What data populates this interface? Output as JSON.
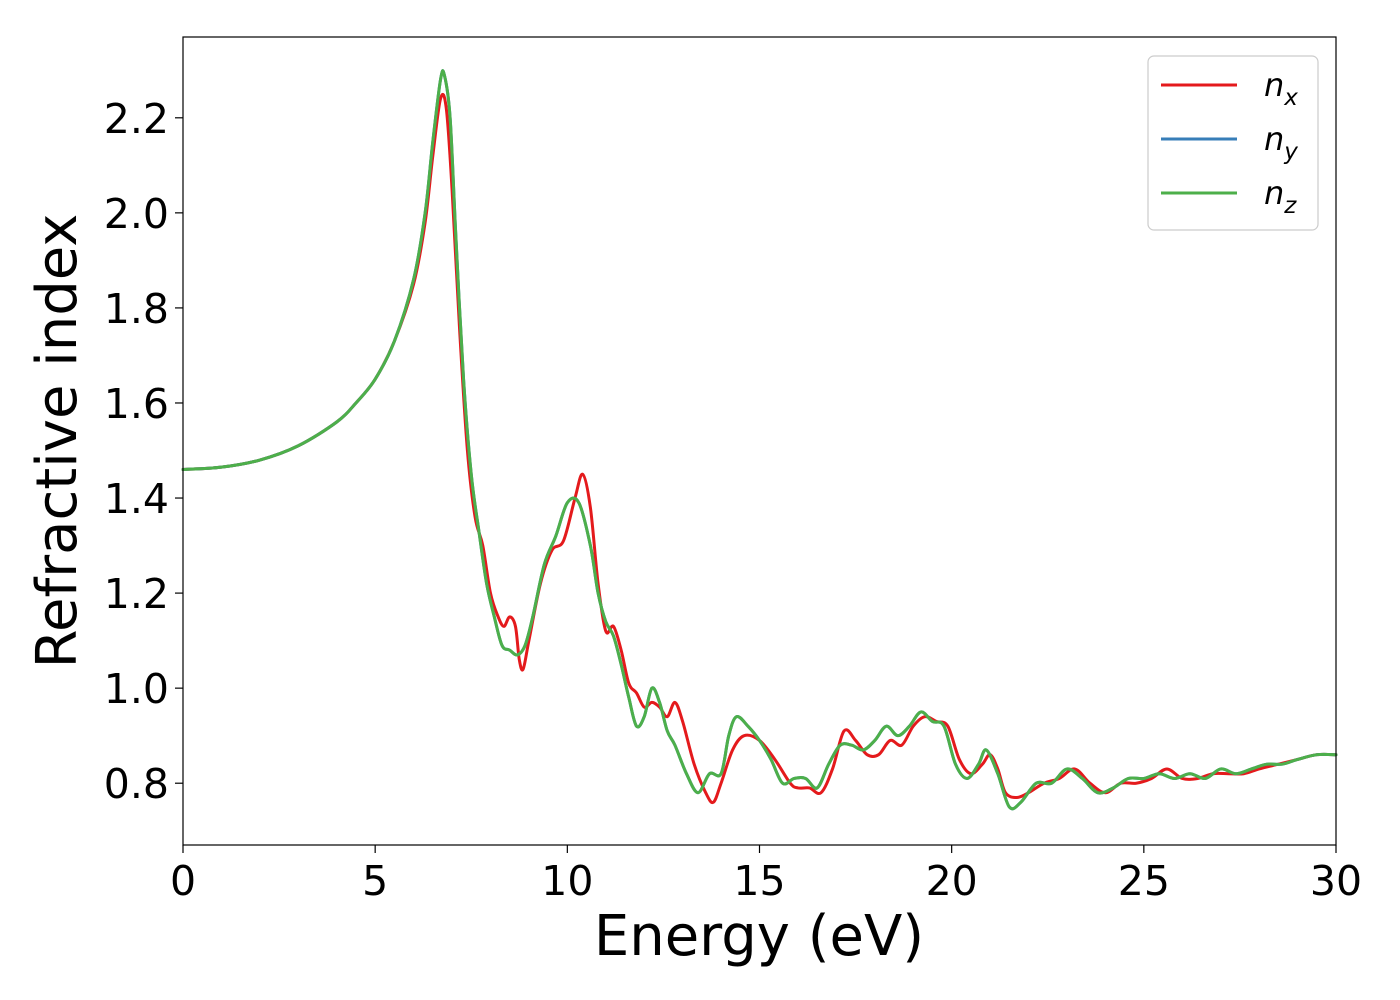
{
  "chart_data": {
    "type": "line",
    "title": "",
    "xlabel": "Energy (eV)",
    "ylabel": "Refractive index",
    "xlim": [
      0,
      30
    ],
    "ylim": [
      0.67,
      2.37
    ],
    "xticks": [
      "0",
      "5",
      "10",
      "15",
      "20",
      "25",
      "30"
    ],
    "yticks": [
      "0.8",
      "1.0",
      "1.2",
      "1.4",
      "1.6",
      "1.8",
      "2.0",
      "2.2"
    ],
    "grid": false,
    "legend_position": "top-right",
    "series": [
      {
        "name": "n",
        "subscript": "x",
        "color": "#e41a1c",
        "points": [
          [
            0,
            1.46
          ],
          [
            1,
            1.465
          ],
          [
            2,
            1.48
          ],
          [
            3,
            1.51
          ],
          [
            4,
            1.56
          ],
          [
            4.5,
            1.6
          ],
          [
            5,
            1.65
          ],
          [
            5.5,
            1.73
          ],
          [
            6,
            1.85
          ],
          [
            6.3,
            1.98
          ],
          [
            6.5,
            2.12
          ],
          [
            6.7,
            2.24
          ],
          [
            6.85,
            2.22
          ],
          [
            7.0,
            2.05
          ],
          [
            7.2,
            1.75
          ],
          [
            7.4,
            1.5
          ],
          [
            7.6,
            1.36
          ],
          [
            7.8,
            1.3
          ],
          [
            8.0,
            1.2
          ],
          [
            8.2,
            1.15
          ],
          [
            8.35,
            1.13
          ],
          [
            8.5,
            1.15
          ],
          [
            8.65,
            1.13
          ],
          [
            8.75,
            1.06
          ],
          [
            8.85,
            1.04
          ],
          [
            9.0,
            1.1
          ],
          [
            9.3,
            1.22
          ],
          [
            9.6,
            1.29
          ],
          [
            9.9,
            1.31
          ],
          [
            10.2,
            1.4
          ],
          [
            10.4,
            1.45
          ],
          [
            10.6,
            1.38
          ],
          [
            10.8,
            1.22
          ],
          [
            11.0,
            1.12
          ],
          [
            11.2,
            1.13
          ],
          [
            11.4,
            1.08
          ],
          [
            11.6,
            1.01
          ],
          [
            11.8,
            0.99
          ],
          [
            12.0,
            0.96
          ],
          [
            12.2,
            0.97
          ],
          [
            12.4,
            0.96
          ],
          [
            12.6,
            0.94
          ],
          [
            12.8,
            0.97
          ],
          [
            13.0,
            0.93
          ],
          [
            13.3,
            0.84
          ],
          [
            13.6,
            0.78
          ],
          [
            13.8,
            0.76
          ],
          [
            14.0,
            0.8
          ],
          [
            14.3,
            0.87
          ],
          [
            14.6,
            0.9
          ],
          [
            15.0,
            0.89
          ],
          [
            15.4,
            0.85
          ],
          [
            15.8,
            0.8
          ],
          [
            16.0,
            0.79
          ],
          [
            16.3,
            0.79
          ],
          [
            16.6,
            0.78
          ],
          [
            16.9,
            0.83
          ],
          [
            17.2,
            0.91
          ],
          [
            17.5,
            0.89
          ],
          [
            17.8,
            0.86
          ],
          [
            18.1,
            0.86
          ],
          [
            18.4,
            0.89
          ],
          [
            18.7,
            0.88
          ],
          [
            19.0,
            0.92
          ],
          [
            19.3,
            0.94
          ],
          [
            19.6,
            0.93
          ],
          [
            19.9,
            0.92
          ],
          [
            20.2,
            0.85
          ],
          [
            20.5,
            0.82
          ],
          [
            20.8,
            0.84
          ],
          [
            21.0,
            0.86
          ],
          [
            21.2,
            0.83
          ],
          [
            21.4,
            0.78
          ],
          [
            21.7,
            0.77
          ],
          [
            22.0,
            0.78
          ],
          [
            22.4,
            0.8
          ],
          [
            22.8,
            0.81
          ],
          [
            23.2,
            0.83
          ],
          [
            23.6,
            0.8
          ],
          [
            24.0,
            0.78
          ],
          [
            24.4,
            0.8
          ],
          [
            24.8,
            0.8
          ],
          [
            25.2,
            0.81
          ],
          [
            25.6,
            0.83
          ],
          [
            26.0,
            0.81
          ],
          [
            26.4,
            0.81
          ],
          [
            26.8,
            0.82
          ],
          [
            27.2,
            0.82
          ],
          [
            27.6,
            0.82
          ],
          [
            28.0,
            0.83
          ],
          [
            28.5,
            0.84
          ],
          [
            29.0,
            0.85
          ],
          [
            29.5,
            0.86
          ],
          [
            30,
            0.86
          ]
        ]
      },
      {
        "name": "n",
        "subscript": "y",
        "color": "#377eb8",
        "points": [
          [
            0,
            1.46
          ],
          [
            1,
            1.465
          ],
          [
            2,
            1.48
          ],
          [
            3,
            1.51
          ],
          [
            4,
            1.56
          ],
          [
            4.5,
            1.6
          ],
          [
            5,
            1.65
          ],
          [
            5.5,
            1.73
          ],
          [
            6,
            1.86
          ],
          [
            6.3,
            2.0
          ],
          [
            6.5,
            2.15
          ],
          [
            6.7,
            2.28
          ],
          [
            6.8,
            2.29
          ],
          [
            6.95,
            2.2
          ],
          [
            7.1,
            1.95
          ],
          [
            7.3,
            1.65
          ],
          [
            7.5,
            1.45
          ],
          [
            7.7,
            1.33
          ],
          [
            7.9,
            1.22
          ],
          [
            8.1,
            1.15
          ],
          [
            8.3,
            1.09
          ],
          [
            8.5,
            1.08
          ],
          [
            8.7,
            1.07
          ],
          [
            8.9,
            1.09
          ],
          [
            9.1,
            1.15
          ],
          [
            9.4,
            1.26
          ],
          [
            9.7,
            1.32
          ],
          [
            10.0,
            1.39
          ],
          [
            10.3,
            1.39
          ],
          [
            10.6,
            1.3
          ],
          [
            10.8,
            1.2
          ],
          [
            11.0,
            1.14
          ],
          [
            11.2,
            1.11
          ],
          [
            11.4,
            1.05
          ],
          [
            11.6,
            0.98
          ],
          [
            11.8,
            0.92
          ],
          [
            12.0,
            0.94
          ],
          [
            12.2,
            1.0
          ],
          [
            12.4,
            0.97
          ],
          [
            12.6,
            0.91
          ],
          [
            12.8,
            0.88
          ],
          [
            13.1,
            0.82
          ],
          [
            13.4,
            0.78
          ],
          [
            13.7,
            0.82
          ],
          [
            14.0,
            0.82
          ],
          [
            14.2,
            0.9
          ],
          [
            14.4,
            0.94
          ],
          [
            14.7,
            0.92
          ],
          [
            15.0,
            0.89
          ],
          [
            15.3,
            0.85
          ],
          [
            15.6,
            0.8
          ],
          [
            15.9,
            0.81
          ],
          [
            16.2,
            0.81
          ],
          [
            16.5,
            0.79
          ],
          [
            16.8,
            0.84
          ],
          [
            17.1,
            0.88
          ],
          [
            17.4,
            0.88
          ],
          [
            17.7,
            0.87
          ],
          [
            18.0,
            0.89
          ],
          [
            18.3,
            0.92
          ],
          [
            18.6,
            0.9
          ],
          [
            18.9,
            0.92
          ],
          [
            19.2,
            0.95
          ],
          [
            19.5,
            0.93
          ],
          [
            19.8,
            0.92
          ],
          [
            20.1,
            0.84
          ],
          [
            20.4,
            0.81
          ],
          [
            20.7,
            0.84
          ],
          [
            20.9,
            0.87
          ],
          [
            21.2,
            0.82
          ],
          [
            21.5,
            0.75
          ],
          [
            21.8,
            0.76
          ],
          [
            22.2,
            0.8
          ],
          [
            22.6,
            0.8
          ],
          [
            23.0,
            0.83
          ],
          [
            23.4,
            0.81
          ],
          [
            23.8,
            0.78
          ],
          [
            24.2,
            0.79
          ],
          [
            24.6,
            0.81
          ],
          [
            25.0,
            0.81
          ],
          [
            25.4,
            0.82
          ],
          [
            25.8,
            0.81
          ],
          [
            26.2,
            0.82
          ],
          [
            26.6,
            0.81
          ],
          [
            27.0,
            0.83
          ],
          [
            27.4,
            0.82
          ],
          [
            27.8,
            0.83
          ],
          [
            28.2,
            0.84
          ],
          [
            28.6,
            0.84
          ],
          [
            29.0,
            0.85
          ],
          [
            29.5,
            0.86
          ],
          [
            30,
            0.86
          ]
        ]
      },
      {
        "name": "n",
        "subscript": "z",
        "color": "#4daf4a",
        "points": [
          [
            0,
            1.46
          ],
          [
            1,
            1.465
          ],
          [
            2,
            1.48
          ],
          [
            3,
            1.51
          ],
          [
            4,
            1.56
          ],
          [
            4.5,
            1.6
          ],
          [
            5,
            1.65
          ],
          [
            5.5,
            1.73
          ],
          [
            6,
            1.86
          ],
          [
            6.3,
            2.0
          ],
          [
            6.5,
            2.15
          ],
          [
            6.7,
            2.28
          ],
          [
            6.8,
            2.29
          ],
          [
            6.95,
            2.2
          ],
          [
            7.1,
            1.95
          ],
          [
            7.3,
            1.65
          ],
          [
            7.5,
            1.45
          ],
          [
            7.7,
            1.33
          ],
          [
            7.9,
            1.22
          ],
          [
            8.1,
            1.15
          ],
          [
            8.3,
            1.09
          ],
          [
            8.5,
            1.08
          ],
          [
            8.7,
            1.07
          ],
          [
            8.9,
            1.09
          ],
          [
            9.1,
            1.15
          ],
          [
            9.4,
            1.26
          ],
          [
            9.7,
            1.32
          ],
          [
            10.0,
            1.39
          ],
          [
            10.3,
            1.39
          ],
          [
            10.6,
            1.3
          ],
          [
            10.8,
            1.2
          ],
          [
            11.0,
            1.14
          ],
          [
            11.2,
            1.11
          ],
          [
            11.4,
            1.05
          ],
          [
            11.6,
            0.98
          ],
          [
            11.8,
            0.92
          ],
          [
            12.0,
            0.94
          ],
          [
            12.2,
            1.0
          ],
          [
            12.4,
            0.97
          ],
          [
            12.6,
            0.91
          ],
          [
            12.8,
            0.88
          ],
          [
            13.1,
            0.82
          ],
          [
            13.4,
            0.78
          ],
          [
            13.7,
            0.82
          ],
          [
            14.0,
            0.82
          ],
          [
            14.2,
            0.9
          ],
          [
            14.4,
            0.94
          ],
          [
            14.7,
            0.92
          ],
          [
            15.0,
            0.89
          ],
          [
            15.3,
            0.85
          ],
          [
            15.6,
            0.8
          ],
          [
            15.9,
            0.81
          ],
          [
            16.2,
            0.81
          ],
          [
            16.5,
            0.79
          ],
          [
            16.8,
            0.84
          ],
          [
            17.1,
            0.88
          ],
          [
            17.4,
            0.88
          ],
          [
            17.7,
            0.87
          ],
          [
            18.0,
            0.89
          ],
          [
            18.3,
            0.92
          ],
          [
            18.6,
            0.9
          ],
          [
            18.9,
            0.92
          ],
          [
            19.2,
            0.95
          ],
          [
            19.5,
            0.93
          ],
          [
            19.8,
            0.92
          ],
          [
            20.1,
            0.84
          ],
          [
            20.4,
            0.81
          ],
          [
            20.7,
            0.84
          ],
          [
            20.9,
            0.87
          ],
          [
            21.2,
            0.82
          ],
          [
            21.5,
            0.75
          ],
          [
            21.8,
            0.76
          ],
          [
            22.2,
            0.8
          ],
          [
            22.6,
            0.8
          ],
          [
            23.0,
            0.83
          ],
          [
            23.4,
            0.81
          ],
          [
            23.8,
            0.78
          ],
          [
            24.2,
            0.79
          ],
          [
            24.6,
            0.81
          ],
          [
            25.0,
            0.81
          ],
          [
            25.4,
            0.82
          ],
          [
            25.8,
            0.81
          ],
          [
            26.2,
            0.82
          ],
          [
            26.6,
            0.81
          ],
          [
            27.0,
            0.83
          ],
          [
            27.4,
            0.82
          ],
          [
            27.8,
            0.83
          ],
          [
            28.2,
            0.84
          ],
          [
            28.6,
            0.84
          ],
          [
            29.0,
            0.85
          ],
          [
            29.5,
            0.86
          ],
          [
            30,
            0.86
          ]
        ]
      }
    ]
  }
}
